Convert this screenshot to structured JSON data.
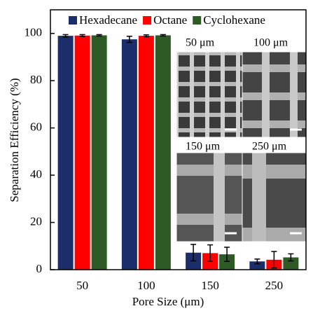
{
  "chart_data": {
    "type": "bar",
    "x_label": "Pore Size (μm)",
    "y_label": "Separation Efficiency (%)",
    "categories": [
      "50",
      "100",
      "150",
      "250"
    ],
    "series": [
      {
        "name": "Hexadecane",
        "color": "#1b2e6b",
        "values": [
          99.0,
          97.5,
          7.2,
          3.5
        ],
        "errors": [
          0.5,
          1.3,
          3.5,
          1.0
        ]
      },
      {
        "name": "Octane",
        "color": "#ff0000",
        "values": [
          99.1,
          99.0,
          7.0,
          4.2
        ],
        "errors": [
          0.4,
          0.4,
          3.5,
          3.5
        ]
      },
      {
        "name": "Cyclohexane",
        "color": "#2e5a25",
        "values": [
          99.2,
          99.2,
          6.5,
          5.2
        ],
        "errors": [
          0.3,
          0.3,
          3.0,
          1.5
        ]
      }
    ],
    "ylim": [
      0,
      110
    ],
    "yticks": [
      0,
      20,
      40,
      60,
      80,
      100
    ],
    "insets": [
      "50 μm",
      "100 μm",
      "150 μm",
      "250 μm"
    ]
  }
}
